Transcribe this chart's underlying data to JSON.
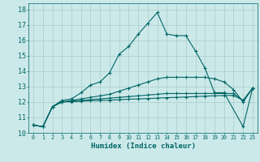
{
  "xlabel": "Humidex (Indice chaleur)",
  "bg_color": "#cce9e9",
  "grid_color": "#aacccc",
  "line_color": "#006666",
  "xlim": [
    -0.5,
    23.5
  ],
  "ylim": [
    10,
    18.4
  ],
  "xticks": [
    0,
    1,
    2,
    3,
    4,
    5,
    6,
    7,
    8,
    9,
    10,
    11,
    12,
    13,
    14,
    15,
    16,
    17,
    18,
    19,
    20,
    21,
    22,
    23
  ],
  "yticks": [
    10,
    11,
    12,
    13,
    14,
    15,
    16,
    17,
    18
  ],
  "series": [
    {
      "x": [
        0,
        1,
        2,
        3,
        4,
        5,
        6,
        7,
        8,
        9,
        10,
        11,
        12,
        13,
        14,
        15,
        16,
        17,
        18,
        19,
        20,
        22,
        23
      ],
      "y": [
        10.5,
        10.4,
        11.7,
        12.1,
        12.2,
        12.6,
        13.1,
        13.3,
        13.9,
        15.1,
        15.6,
        16.4,
        17.1,
        17.8,
        16.4,
        16.3,
        16.3,
        15.3,
        14.2,
        12.6,
        12.6,
        10.4,
        12.9
      ]
    },
    {
      "x": [
        0,
        1,
        2,
        3,
        4,
        5,
        6,
        7,
        8,
        9,
        10,
        11,
        12,
        13,
        14,
        15,
        16,
        17,
        18,
        19,
        20,
        21,
        22,
        23
      ],
      "y": [
        10.5,
        10.4,
        11.7,
        12.0,
        12.1,
        12.2,
        12.3,
        12.4,
        12.5,
        12.7,
        12.9,
        13.1,
        13.3,
        13.5,
        13.6,
        13.6,
        13.6,
        13.6,
        13.6,
        13.5,
        13.3,
        12.8,
        12.0,
        12.9
      ]
    },
    {
      "x": [
        0,
        1,
        2,
        3,
        4,
        5,
        6,
        7,
        8,
        9,
        10,
        11,
        12,
        13,
        14,
        15,
        16,
        17,
        18,
        19,
        20,
        21,
        22,
        23
      ],
      "y": [
        10.5,
        10.4,
        11.7,
        12.0,
        12.05,
        12.1,
        12.15,
        12.2,
        12.25,
        12.3,
        12.35,
        12.4,
        12.45,
        12.5,
        12.55,
        12.55,
        12.55,
        12.55,
        12.55,
        12.55,
        12.55,
        12.55,
        12.1,
        12.9
      ]
    },
    {
      "x": [
        0,
        1,
        2,
        3,
        4,
        5,
        6,
        7,
        8,
        9,
        10,
        11,
        12,
        13,
        14,
        15,
        16,
        17,
        18,
        19,
        20,
        21,
        22,
        23
      ],
      "y": [
        10.5,
        10.4,
        11.7,
        12.0,
        12.02,
        12.05,
        12.08,
        12.1,
        12.12,
        12.15,
        12.18,
        12.2,
        12.22,
        12.25,
        12.28,
        12.3,
        12.32,
        12.35,
        12.38,
        12.4,
        12.42,
        12.43,
        12.1,
        12.9
      ]
    }
  ]
}
